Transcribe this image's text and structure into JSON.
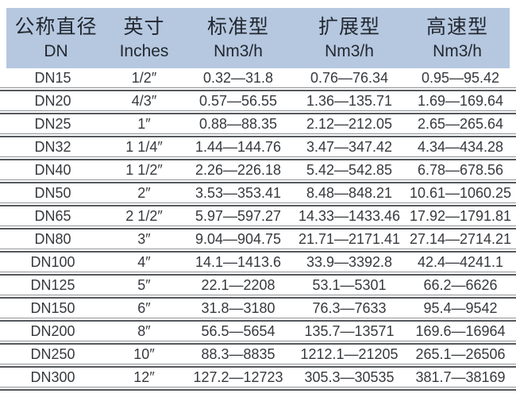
{
  "table": {
    "header": {
      "columns": [
        {
          "line1": "公称直径",
          "line2": "DN"
        },
        {
          "line1": "英寸",
          "line2": "Inches"
        },
        {
          "line1": "标准型",
          "line2": "Nm3/h"
        },
        {
          "line1": "扩展型",
          "line2": "Nm3/h"
        },
        {
          "line1": "高速型",
          "line2": "Nm3/h"
        }
      ]
    },
    "rows": [
      [
        "DN15",
        "1/2″",
        "0.32—31.8",
        "0.76—76.34",
        "0.95—95.42"
      ],
      [
        "DN20",
        "4/3″",
        "0.57—56.55",
        "1.36—135.71",
        "1.69—169.64"
      ],
      [
        "DN25",
        "1″",
        "0.88—88.35",
        "2.12—212.05",
        "2.65—265.64"
      ],
      [
        "DN32",
        "1 1/4″",
        "1.44—144.76",
        "3.47—347.42",
        "4.34—434.28"
      ],
      [
        "DN40",
        "1 1/2″",
        "2.26—226.18",
        "5.42—542.85",
        "6.78—678.56"
      ],
      [
        "DN50",
        "2″",
        "3.53—353.41",
        "8.48—848.21",
        "10.61—1060.25"
      ],
      [
        "DN65",
        "2 1/2″",
        "5.97—597.27",
        "14.33—1433.46",
        "17.92—1791.81"
      ],
      [
        "DN80",
        "3″",
        "9.04—904.75",
        "21.71—2171.41",
        "27.14—2714.21"
      ],
      [
        "DN100",
        "4″",
        "14.1—1413.6",
        "33.9—3392.8",
        "42.4—4241.1"
      ],
      [
        "DN125",
        "5″",
        "22.1—2208",
        "53.1—5301",
        "66.2—6626"
      ],
      [
        "DN150",
        "6″",
        "31.8—3180",
        "76.3—7633",
        "95.4—9542"
      ],
      [
        "DN200",
        "8″",
        "56.5—5654",
        "135.7—13571",
        "169.6—16964"
      ],
      [
        "DN250",
        "10″",
        "88.3—8835",
        "1212.1—21205",
        "265.1—26506"
      ],
      [
        "DN300",
        "12″",
        "127.2—12723",
        "305.3—30535",
        "381.7—38169"
      ]
    ],
    "colors": {
      "header_bg": "#b6c8e0",
      "header_text": "#232830",
      "body_text": "#36393d",
      "separator_light": "#8e9296",
      "separator_dark": "#55585c",
      "page_bg": "#ffffff"
    }
  }
}
